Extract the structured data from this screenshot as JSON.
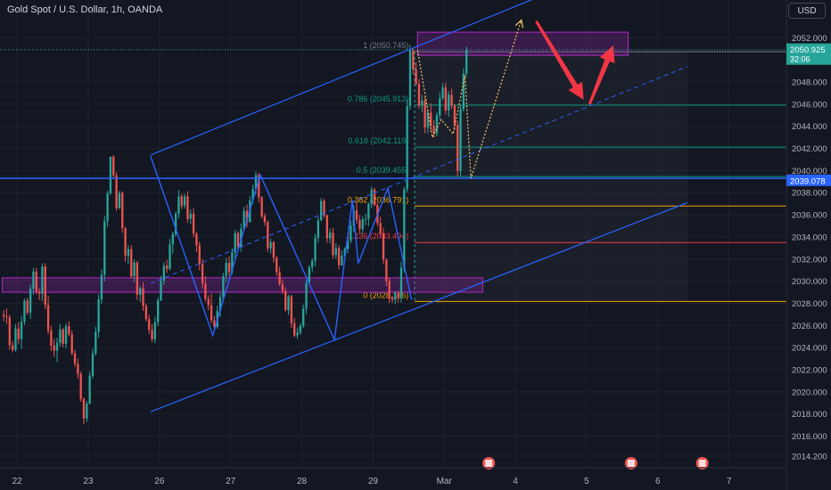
{
  "header": {
    "symbol_title": "Gold Spot / U.S. Dollar, 1h, OANDA",
    "currency_button": "USD"
  },
  "colors": {
    "background": "#131722",
    "up_candle": "#26a69a",
    "down_candle": "#ef5350",
    "channel": "#2962ff",
    "zone": "#9c27b0",
    "price_label": "#26a69a",
    "level_label": "#2962ff",
    "projection": "#f5c86a",
    "arrow": "#f23645"
  },
  "chart_data": {
    "type": "candlestick",
    "symbol": "Gold Spot / U.S. Dollar",
    "timeframe": "1h",
    "source": "OANDA",
    "ylim": [
      2013.6,
      2054.6
    ],
    "y_ticks": [
      2014.2,
      2016,
      2018,
      2020,
      2022,
      2024,
      2026,
      2028,
      2030,
      2032,
      2034,
      2036,
      2038,
      2040,
      2042,
      2044,
      2046,
      2048,
      2052
    ],
    "y_tick_labels": [
      "2014.200",
      "2016.000",
      "2018.000",
      "2020.000",
      "2022.000",
      "2024.000",
      "2026.000",
      "2028.000",
      "2030.000",
      "2032.000",
      "2034.000",
      "2036.000",
      "2038.000",
      "2040.000",
      "2042.000",
      "2044.000",
      "2046.000",
      "2048.000",
      "2052.000"
    ],
    "x_ticks": [
      {
        "label": "22",
        "t": 5
      },
      {
        "label": "23",
        "t": 29
      },
      {
        "label": "26",
        "t": 53
      },
      {
        "label": "27",
        "t": 77
      },
      {
        "label": "28",
        "t": 101
      },
      {
        "label": "29",
        "t": 125
      },
      {
        "label": "Mar",
        "t": 149
      },
      {
        "label": "4",
        "t": 173
      },
      {
        "label": "5",
        "t": 197
      },
      {
        "label": "6",
        "t": 221
      },
      {
        "label": "7",
        "t": 245
      }
    ],
    "current_price": {
      "value": 2050.925,
      "label": "2050.925",
      "countdown": "32:06"
    },
    "marked_level": {
      "value": 2039.078,
      "label": "2039.078"
    },
    "fibonacci": [
      {
        "ratio": "1",
        "price": 2050.745,
        "label": "1 (2050.745)",
        "color": "#787b86"
      },
      {
        "ratio": "0.786",
        "price": 2045.913,
        "label": "0.786 (2045.913)",
        "color": "#089981"
      },
      {
        "ratio": "0.618",
        "price": 2042.119,
        "label": "0.618 (2042.119)",
        "color": "#089981"
      },
      {
        "ratio": "0.5",
        "price": 2039.455,
        "label": "0.5 (2039.455)",
        "color": "#089981"
      },
      {
        "ratio": "0.382",
        "price": 2036.791,
        "label": "0.382 (2036.791)",
        "color": "#f7a600"
      },
      {
        "ratio": "0.236",
        "price": 2033.494,
        "label": "0.236 (2033.494)",
        "color": "#f23645"
      },
      {
        "ratio": "0",
        "price": 2028.165,
        "label": "0 (2028.165)",
        "color": "#f7a600"
      }
    ],
    "channel": {
      "upper": [
        {
          "t": 50,
          "price": 2041.4
        },
        {
          "t": 180,
          "price": 2055.6
        }
      ],
      "lower": [
        {
          "t": 50,
          "price": 2018.2
        },
        {
          "t": 231,
          "price": 2037.1
        }
      ],
      "middle": [
        {
          "t": 50,
          "price": 2029.8
        },
        {
          "t": 231,
          "price": 2049.4
        }
      ]
    },
    "horizontal_line": {
      "price": 2039.3
    },
    "zones": [
      {
        "t_start": 0,
        "t_end": 162,
        "price_top": 2030.3,
        "price_bottom": 2029.0
      },
      {
        "t_start": 140,
        "t_end": 211,
        "price_top": 2052.5,
        "price_bottom": 2050.4
      }
    ],
    "wave_pattern": [
      {
        "t": 50,
        "price": 2041.3
      },
      {
        "t": 71,
        "price": 2025.1
      },
      {
        "t": 87,
        "price": 2039.6
      },
      {
        "t": 112,
        "price": 2024.7
      },
      {
        "t": 118,
        "price": 2037.3
      },
      {
        "t": 120,
        "price": 2031.6
      },
      {
        "t": 130,
        "price": 2038.4
      },
      {
        "t": 138,
        "price": 2028.3
      }
    ],
    "projection_path": [
      {
        "t": 140,
        "price": 2050.9
      },
      {
        "t": 145,
        "price": 2043.0
      },
      {
        "t": 148,
        "price": 2044.6
      },
      {
        "t": 152,
        "price": 2043.3
      },
      {
        "t": 156,
        "price": 2048.6
      },
      {
        "t": 158,
        "price": 2039.3
      },
      {
        "t": 175,
        "price": 2053.6
      }
    ],
    "forecast_arrows": [
      {
        "direction": "down",
        "from": {
          "t": 180,
          "price": 2053.5
        },
        "to": {
          "t": 196,
          "price": 2046.4
        }
      },
      {
        "direction": "up",
        "from": {
          "t": 198,
          "price": 2046.0
        },
        "to": {
          "t": 206,
          "price": 2051.3
        }
      }
    ],
    "event_icons": [
      {
        "t": 164
      },
      {
        "t": 212
      },
      {
        "t": 236
      }
    ],
    "candles": [
      [
        2026.98,
        2027.41,
        2026.37,
        2026.81
      ],
      [
        2026.81,
        2027.52,
        2026.14,
        2026.72
      ],
      [
        2026.72,
        2026.98,
        2023.79,
        2024.21
      ],
      [
        2024.21,
        2024.59,
        2023.56,
        2023.79
      ],
      [
        2023.79,
        2026.12,
        2023.63,
        2025.71
      ],
      [
        2025.71,
        2026.3,
        2024.31,
        2024.76
      ],
      [
        2024.76,
        2026.86,
        2023.92,
        2026.35
      ],
      [
        2026.35,
        2028.42,
        2026.01,
        2028.23
      ],
      [
        2028.23,
        2028.51,
        2026.96,
        2027.16
      ],
      [
        2027.16,
        2029.68,
        2026.58,
        2029.31
      ],
      [
        2029.31,
        2031.2,
        2028.79,
        2030.87
      ],
      [
        2030.87,
        2031.22,
        2028.81,
        2029.05
      ],
      [
        2029.05,
        2029.35,
        2028.28,
        2028.87
      ],
      [
        2028.87,
        2031.61,
        2028.21,
        2031.33
      ],
      [
        2031.33,
        2031.62,
        2027.47,
        2027.86
      ],
      [
        2027.86,
        2028.69,
        2025.19,
        2025.52
      ],
      [
        2025.52,
        2025.94,
        2023.71,
        2024.18
      ],
      [
        2024.18,
        2024.77,
        2023.17,
        2023.72
      ],
      [
        2023.72,
        2024.88,
        2022.69,
        2024.43
      ],
      [
        2024.43,
        2026.14,
        2024.08,
        2025.64
      ],
      [
        2025.64,
        2025.8,
        2024.03,
        2024.33
      ],
      [
        2024.33,
        2026.17,
        2023.91,
        2025.92
      ],
      [
        2025.92,
        2026.36,
        2025.0,
        2025.2
      ],
      [
        2025.2,
        2025.54,
        2023.29,
        2023.49
      ],
      [
        2023.49,
        2023.78,
        2022.24,
        2022.52
      ],
      [
        2022.52,
        2023.01,
        2021.2,
        2021.61
      ],
      [
        2021.61,
        2021.83,
        2019.09,
        2019.35
      ],
      [
        2019.35,
        2019.47,
        2017.06,
        2017.6
      ],
      [
        2017.6,
        2019.18,
        2017.27,
        2018.92
      ],
      [
        2018.92,
        2021.8,
        2018.88,
        2021.45
      ],
      [
        2021.45,
        2023.9,
        2021.19,
        2023.48
      ],
      [
        2023.48,
        2025.9,
        2023.26,
        2025.44
      ],
      [
        2025.44,
        2028.83,
        2024.88,
        2028.35
      ],
      [
        2028.35,
        2031.06,
        2027.93,
        2030.6
      ],
      [
        2030.6,
        2035.89,
        2029.97,
        2035.43
      ],
      [
        2035.43,
        2038.16,
        2034.89,
        2037.93
      ],
      [
        2037.93,
        2041.28,
        2037.8,
        2041.24
      ],
      [
        2041.24,
        2041.37,
        2039.24,
        2039.56
      ],
      [
        2039.56,
        2039.87,
        2036.35,
        2036.6
      ],
      [
        2036.6,
        2038.16,
        2036.52,
        2037.97
      ],
      [
        2037.97,
        2038.13,
        2034.36,
        2034.8
      ],
      [
        2034.8,
        2034.89,
        2031.75,
        2032.29
      ],
      [
        2032.29,
        2033.26,
        2031.52,
        2032.9
      ],
      [
        2032.9,
        2033.26,
        2030.26,
        2030.44
      ],
      [
        2030.44,
        2031.95,
        2029.91,
        2031.69
      ],
      [
        2031.69,
        2031.83,
        2028.31,
        2028.76
      ],
      [
        2028.76,
        2029.56,
        2028.11,
        2029.37
      ],
      [
        2029.37,
        2029.91,
        2027.32,
        2027.75
      ],
      [
        2027.75,
        2027.98,
        2026.35,
        2026.57
      ],
      [
        2026.57,
        2026.96,
        2025.24,
        2025.6
      ],
      [
        2025.6,
        2026.11,
        2024.5,
        2024.73
      ],
      [
        2024.73,
        2026.78,
        2024.38,
        2026.29
      ],
      [
        2026.29,
        2028.51,
        2025.95,
        2028.27
      ],
      [
        2028.27,
        2030.47,
        2028.2,
        2030.02
      ],
      [
        2030.02,
        2031.71,
        2029.66,
        2031.4
      ],
      [
        2031.4,
        2031.92,
        2030.75,
        2031.11
      ],
      [
        2031.11,
        2033.8,
        2030.97,
        2033.32
      ],
      [
        2033.32,
        2034.45,
        2032.47,
        2034.26
      ],
      [
        2034.26,
        2036.29,
        2034.04,
        2036.1
      ],
      [
        2036.1,
        2038.23,
        2035.69,
        2037.66
      ],
      [
        2037.66,
        2037.9,
        2036.53,
        2036.82
      ],
      [
        2036.82,
        2037.91,
        2036.56,
        2037.66
      ],
      [
        2037.66,
        2038.14,
        2035.28,
        2035.62
      ],
      [
        2035.62,
        2036.48,
        2035.15,
        2036.1
      ],
      [
        2036.1,
        2036.61,
        2033.97,
        2034.29
      ],
      [
        2034.29,
        2034.44,
        2032.63,
        2033.23
      ],
      [
        2033.23,
        2033.59,
        2031.01,
        2031.56
      ],
      [
        2031.56,
        2031.99,
        2029.34,
        2029.78
      ],
      [
        2029.78,
        2030.43,
        2028.17,
        2028.38
      ],
      [
        2028.38,
        2028.74,
        2027.37,
        2027.83
      ],
      [
        2027.83,
        2028.87,
        2026.2,
        2026.46
      ],
      [
        2026.46,
        2026.83,
        2025.67,
        2025.89
      ],
      [
        2025.89,
        2027.77,
        2025.7,
        2027.31
      ],
      [
        2027.31,
        2028.94,
        2026.79,
        2028.56
      ],
      [
        2028.56,
        2030.75,
        2028.27,
        2030.45
      ],
      [
        2030.45,
        2032.11,
        2029.9,
        2031.66
      ],
      [
        2031.66,
        2032.24,
        2030.42,
        2030.82
      ],
      [
        2030.82,
        2032.95,
        2030.63,
        2032.6
      ],
      [
        2032.6,
        2034.63,
        2032.08,
        2034.34
      ],
      [
        2034.34,
        2034.52,
        2032.8,
        2033.07
      ],
      [
        2033.07,
        2035.21,
        2032.67,
        2034.74
      ],
      [
        2034.74,
        2036.73,
        2034.59,
        2036.36
      ],
      [
        2036.36,
        2036.92,
        2034.85,
        2035.36
      ],
      [
        2035.36,
        2037.71,
        2035.26,
        2037.29
      ],
      [
        2037.29,
        2038.73,
        2036.99,
        2038.33
      ],
      [
        2038.33,
        2039.93,
        2037.85,
        2039.6
      ],
      [
        2039.6,
        2039.78,
        2037.09,
        2037.58
      ],
      [
        2037.58,
        2037.7,
        2035.68,
        2035.87
      ],
      [
        2035.87,
        2036.14,
        2034.98,
        2035.32
      ],
      [
        2035.32,
        2035.49,
        2032.66,
        2032.97
      ],
      [
        2032.97,
        2033.84,
        2032.49,
        2033.53
      ],
      [
        2033.53,
        2033.63,
        2031.68,
        2032.11
      ],
      [
        2032.11,
        2032.29,
        2030.47,
        2030.81
      ],
      [
        2030.81,
        2031.3,
        2029.58,
        2029.73
      ],
      [
        2029.73,
        2030.14,
        2028.85,
        2029.11
      ],
      [
        2029.11,
        2029.44,
        2027.23,
        2027.38
      ],
      [
        2027.38,
        2028.78,
        2026.93,
        2028.63
      ],
      [
        2028.63,
        2028.81,
        2025.78,
        2026.2
      ],
      [
        2026.2,
        2026.69,
        2024.93,
        2025.09
      ],
      [
        2025.09,
        2025.82,
        2024.8,
        2025.35
      ],
      [
        2025.35,
        2026.22,
        2025.16,
        2025.97
      ],
      [
        2025.97,
        2027.9,
        2025.76,
        2027.5
      ],
      [
        2027.5,
        2030.13,
        2027.02,
        2029.87
      ],
      [
        2029.87,
        2031.44,
        2029.6,
        2031.26
      ],
      [
        2031.26,
        2032.06,
        2030.78,
        2031.84
      ],
      [
        2031.84,
        2034.28,
        2031.36,
        2033.92
      ],
      [
        2033.92,
        2035.81,
        2033.47,
        2035.51
      ],
      [
        2035.51,
        2037.53,
        2035.43,
        2037.25
      ],
      [
        2037.25,
        2037.47,
        2035.72,
        2035.94
      ],
      [
        2035.94,
        2036.02,
        2033.44,
        2033.86
      ],
      [
        2033.86,
        2034.75,
        2033.41,
        2034.39
      ],
      [
        2034.39,
        2034.84,
        2032.04,
        2032.35
      ],
      [
        2032.35,
        2033.42,
        2032.0,
        2032.98
      ],
      [
        2032.98,
        2033.23,
        2031.07,
        2031.44
      ],
      [
        2031.44,
        2032.79,
        2031.38,
        2032.3
      ],
      [
        2032.3,
        2033.06,
        2032.17,
        2032.91
      ],
      [
        2032.91,
        2034.05,
        2032.52,
        2033.65
      ],
      [
        2033.65,
        2035.48,
        2033.42,
        2035.04
      ],
      [
        2035.04,
        2036.86,
        2034.46,
        2036.39
      ],
      [
        2036.39,
        2037.07,
        2035.19,
        2035.52
      ],
      [
        2035.52,
        2035.98,
        2034.33,
        2034.7
      ],
      [
        2034.7,
        2035.83,
        2034.27,
        2035.59
      ],
      [
        2035.59,
        2036.1,
        2035.04,
        2035.61
      ],
      [
        2035.61,
        2037.14,
        2034.99,
        2036.97
      ],
      [
        2036.97,
        2038.55,
        2036.6,
        2038.29
      ],
      [
        2038.29,
        2038.43,
        2036.79,
        2036.88
      ],
      [
        2036.88,
        2037.06,
        2034.97,
        2035.25
      ],
      [
        2035.25,
        2035.82,
        2034.0,
        2034.28
      ],
      [
        2034.28,
        2034.85,
        2031.55,
        2031.95
      ],
      [
        2031.95,
        2032.05,
        2029.55,
        2030.02
      ],
      [
        2030.02,
        2030.36,
        2028.03,
        2028.43
      ],
      [
        2028.43,
        2028.69,
        2028.03,
        2028.33
      ],
      [
        2028.33,
        2029.1,
        2027.9,
        2028.91
      ],
      [
        2028.91,
        2029.13,
        2028.07,
        2028.49
      ],
      [
        2028.49,
        2031.78,
        2028.05,
        2031.22
      ],
      [
        2031.22,
        2038.53,
        2030.78,
        2038.31
      ],
      [
        2038.31,
        2046.37,
        2038.03,
        2045.82
      ],
      [
        2045.82,
        2051.36,
        2045.47,
        2050.85
      ],
      [
        2050.85,
        2051.03,
        2048.69,
        2049.15
      ],
      [
        2049.15,
        2049.78,
        2047.69,
        2047.83
      ],
      [
        2047.83,
        2048.26,
        2045.6,
        2045.87
      ],
      [
        2045.87,
        2046.83,
        2045.25,
        2046.31
      ],
      [
        2046.31,
        2046.7,
        2043.39,
        2043.89
      ],
      [
        2043.89,
        2045.54,
        2043.37,
        2045.24
      ],
      [
        2045.24,
        2046.08,
        2043.55,
        2044.05
      ],
      [
        2044.05,
        2044.56,
        2042.97,
        2043.36
      ],
      [
        2043.36,
        2045.26,
        2043.09,
        2045.0
      ],
      [
        2045.0,
        2047.04,
        2044.61,
        2046.53
      ],
      [
        2046.53,
        2047.88,
        2046.38,
        2047.51
      ],
      [
        2047.51,
        2047.95,
        2045.06,
        2045.42
      ],
      [
        2045.42,
        2047.18,
        2044.86,
        2046.86
      ],
      [
        2046.86,
        2047.4,
        2045.56,
        2045.86
      ],
      [
        2045.86,
        2046.01,
        2043.64,
        2044.12
      ],
      [
        2044.12,
        2044.49,
        2039.43,
        2039.96
      ],
      [
        2039.96,
        2045.93,
        2039.49,
        2045.53
      ],
      [
        2045.53,
        2049.21,
        2045.34,
        2048.76
      ],
      [
        2048.76,
        2051.2,
        2048.46,
        2050.92
      ]
    ]
  }
}
